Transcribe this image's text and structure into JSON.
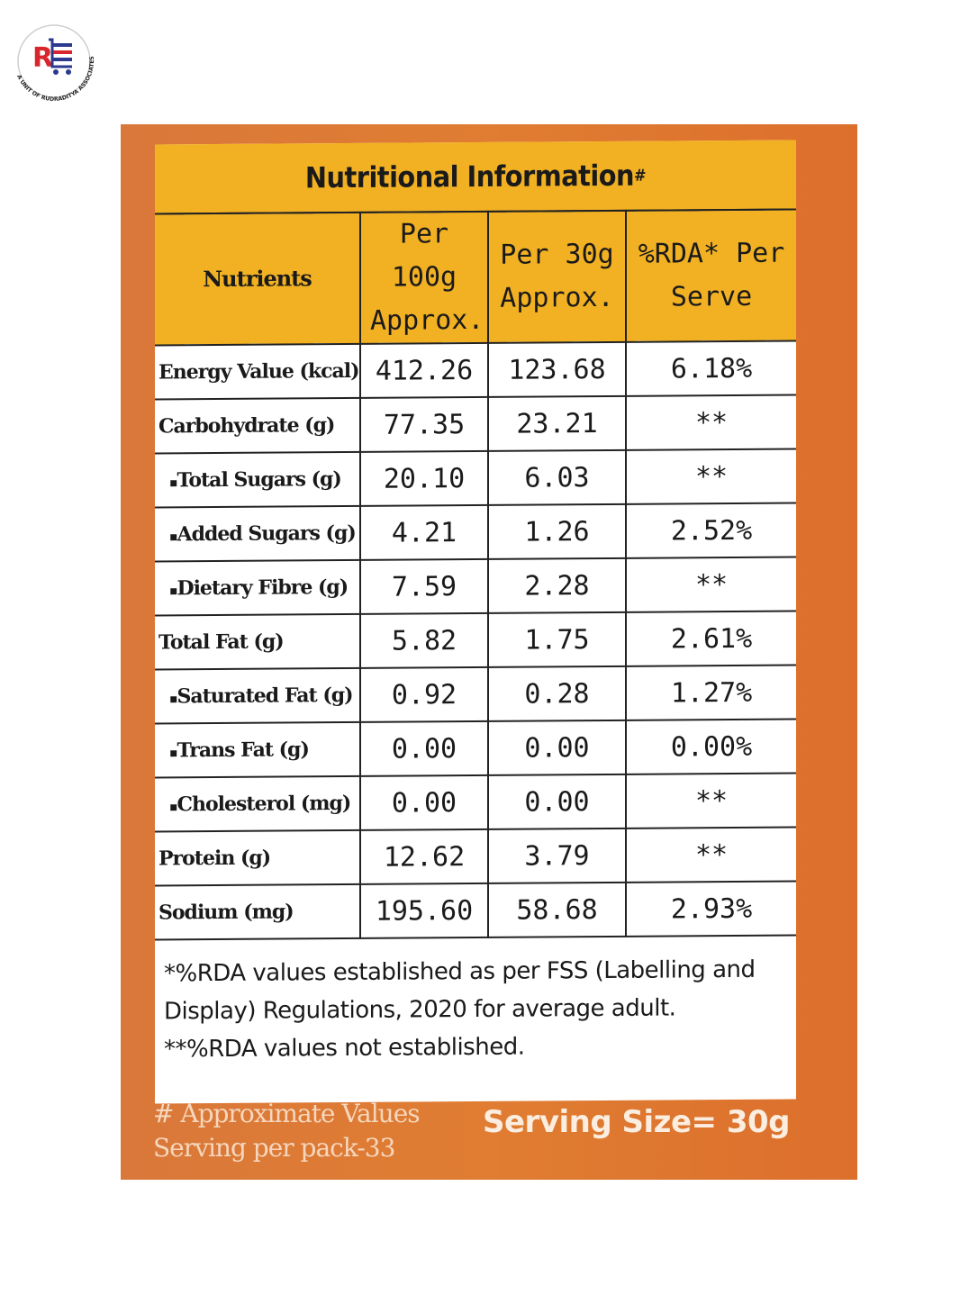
{
  "logo": {
    "monogram": "RE",
    "ring_text": "A UNIT OF RUDRADITYA ASSOCIATES",
    "brand_red": "#d9262c",
    "brand_blue": "#2b3a8f"
  },
  "label": {
    "title": "Nutritional Information",
    "title_mark": "#",
    "columns": [
      "Nutrients",
      "Per 100g Approx.",
      "Per 30g Approx.",
      "%RDA* Per Serve"
    ],
    "rows": [
      {
        "name": "Energy Value (kcal)",
        "sub": false,
        "per100": "412.26",
        "per30": "123.68",
        "rda": "6.18%"
      },
      {
        "name": "Carbohydrate (g)",
        "sub": false,
        "per100": "77.35",
        "per30": "23.21",
        "rda": "**"
      },
      {
        "name": "Total Sugars (g)",
        "sub": true,
        "per100": "20.10",
        "per30": "6.03",
        "rda": "**"
      },
      {
        "name": "Added Sugars (g)",
        "sub": true,
        "per100": "4.21",
        "per30": "1.26",
        "rda": "2.52%"
      },
      {
        "name": "Dietary Fibre (g)",
        "sub": true,
        "per100": "7.59",
        "per30": "2.28",
        "rda": "**"
      },
      {
        "name": "Total Fat (g)",
        "sub": false,
        "per100": "5.82",
        "per30": "1.75",
        "rda": "2.61%"
      },
      {
        "name": "Saturated Fat (g)",
        "sub": true,
        "per100": "0.92",
        "per30": "0.28",
        "rda": "1.27%"
      },
      {
        "name": "Trans Fat (g)",
        "sub": true,
        "per100": "0.00",
        "per30": "0.00",
        "rda": "0.00%"
      },
      {
        "name": "Cholesterol (mg)",
        "sub": true,
        "per100": "0.00",
        "per30": "0.00",
        "rda": "**"
      },
      {
        "name": "Protein (g)",
        "sub": false,
        "per100": "12.62",
        "per30": "3.79",
        "rda": "**"
      },
      {
        "name": "Sodium (mg)",
        "sub": false,
        "per100": "195.60",
        "per30": "58.68",
        "rda": "2.93%"
      }
    ],
    "footnotes": [
      "*%RDA values established as per FSS (Labelling and",
      "Display) Regulations, 2020 for average adult.",
      "**%RDA values not established."
    ],
    "approx_note": "# Approximate Values",
    "servings_per_pack": "Serving per pack-33",
    "serving_size": "Serving Size= 30g"
  },
  "colors": {
    "panel_orange": "#e07d32",
    "header_yellow": "#f2b123"
  }
}
